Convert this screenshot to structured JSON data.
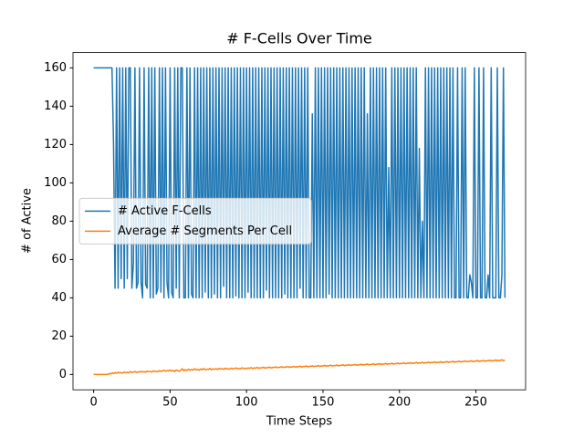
{
  "chart_data": {
    "type": "line",
    "title": "# F-Cells Over Time",
    "x_label": "Time Steps",
    "y_label": "# of Active",
    "xlim": [
      -13.5,
      282.5
    ],
    "ylim": [
      -8,
      168
    ],
    "xticks": [
      0,
      50,
      100,
      150,
      200,
      250
    ],
    "yticks": [
      0,
      20,
      40,
      60,
      80,
      100,
      120,
      140,
      160
    ],
    "legend": "center left",
    "x": [
      0,
      1,
      2,
      3,
      4,
      5,
      6,
      7,
      8,
      9,
      10,
      11,
      12,
      13,
      14,
      15,
      16,
      17,
      18,
      19,
      20,
      21,
      22,
      23,
      24,
      25,
      26,
      27,
      28,
      29,
      30,
      31,
      32,
      33,
      34,
      35,
      36,
      37,
      38,
      39,
      40,
      41,
      42,
      43,
      44,
      45,
      46,
      47,
      48,
      49,
      50,
      51,
      52,
      53,
      54,
      55,
      56,
      57,
      58,
      59,
      60,
      61,
      62,
      63,
      64,
      65,
      66,
      67,
      68,
      69,
      70,
      71,
      72,
      73,
      74,
      75,
      76,
      77,
      78,
      79,
      80,
      81,
      82,
      83,
      84,
      85,
      86,
      87,
      88,
      89,
      90,
      91,
      92,
      93,
      94,
      95,
      96,
      97,
      98,
      99,
      100,
      101,
      102,
      103,
      104,
      105,
      106,
      107,
      108,
      109,
      110,
      111,
      112,
      113,
      114,
      115,
      116,
      117,
      118,
      119,
      120,
      121,
      122,
      123,
      124,
      125,
      126,
      127,
      128,
      129,
      130,
      131,
      132,
      133,
      134,
      135,
      136,
      137,
      138,
      139,
      140,
      141,
      142,
      143,
      144,
      145,
      146,
      147,
      148,
      149,
      150,
      151,
      152,
      153,
      154,
      155,
      156,
      157,
      158,
      159,
      160,
      161,
      162,
      163,
      164,
      165,
      166,
      167,
      168,
      169,
      170,
      171,
      172,
      173,
      174,
      175,
      176,
      177,
      178,
      179,
      180,
      181,
      182,
      183,
      184,
      185,
      186,
      187,
      188,
      189,
      190,
      191,
      192,
      193,
      194,
      195,
      196,
      197,
      198,
      199,
      200,
      201,
      202,
      203,
      204,
      205,
      206,
      207,
      208,
      209,
      210,
      211,
      212,
      213,
      214,
      215,
      216,
      217,
      218,
      219,
      220,
      221,
      222,
      223,
      224,
      225,
      226,
      227,
      228,
      229,
      230,
      231,
      232,
      233,
      234,
      235,
      236,
      237,
      238,
      239,
      240,
      241,
      242,
      243,
      244,
      245,
      246,
      247,
      248,
      249,
      250,
      251,
      252,
      253,
      254,
      255,
      256,
      257,
      258,
      259,
      260,
      261,
      262,
      263,
      264,
      265,
      266,
      267,
      268,
      269
    ],
    "series": [
      {
        "name": "# Active F-Cells",
        "color": "#1f77b4",
        "values": [
          160,
          160,
          160,
          160,
          160,
          160,
          160,
          160,
          160,
          160,
          160,
          160,
          160,
          121,
          45,
          160,
          45,
          160,
          50,
          160,
          45,
          160,
          50,
          160,
          160,
          45,
          58,
          160,
          45,
          48,
          160,
          48,
          40,
          160,
          47,
          45,
          160,
          40,
          160,
          40,
          160,
          42,
          45,
          160,
          43,
          160,
          40,
          160,
          48,
          40,
          160,
          43,
          40,
          160,
          45,
          160,
          40,
          160,
          160,
          40,
          40,
          160,
          40,
          160,
          42,
          40,
          160,
          40,
          160,
          40,
          160,
          40,
          160,
          43,
          160,
          40,
          160,
          40,
          160,
          42,
          160,
          40,
          160,
          40,
          160,
          46,
          160,
          40,
          160,
          40,
          160,
          40,
          160,
          41,
          160,
          40,
          160,
          40,
          160,
          40,
          160,
          43,
          160,
          40,
          160,
          40,
          160,
          40,
          160,
          40,
          160,
          40,
          160,
          44,
          160,
          40,
          160,
          40,
          160,
          40,
          160,
          40,
          160,
          40,
          160,
          42,
          160,
          40,
          160,
          40,
          160,
          40,
          160,
          40,
          160,
          45,
          160,
          40,
          160,
          40,
          160,
          40,
          40,
          136,
          40,
          160,
          40,
          160,
          40,
          160,
          40,
          160,
          40,
          160,
          42,
          160,
          40,
          160,
          40,
          160,
          40,
          160,
          40,
          160,
          40,
          160,
          40,
          160,
          40,
          160,
          40,
          160,
          40,
          160,
          40,
          160,
          40,
          160,
          40,
          136,
          40,
          160,
          40,
          160,
          40,
          160,
          40,
          160,
          40,
          160,
          40,
          160,
          40,
          108,
          40,
          160,
          40,
          160,
          40,
          160,
          40,
          160,
          40,
          160,
          40,
          160,
          40,
          160,
          40,
          160,
          40,
          160,
          40,
          118,
          40,
          80,
          40,
          160,
          40,
          160,
          40,
          160,
          40,
          160,
          40,
          160,
          40,
          160,
          40,
          160,
          40,
          160,
          40,
          160,
          40,
          160,
          40,
          40,
          160,
          40,
          40,
          160,
          40,
          160,
          40,
          40,
          52,
          48,
          40,
          160,
          40,
          40,
          160,
          40,
          40,
          160,
          40,
          40,
          52,
          40,
          160,
          40,
          40,
          40,
          160,
          40,
          40,
          52,
          160,
          40
        ]
      },
      {
        "name": "Average # Segments Per Cell",
        "color": "#ff7f0e",
        "values": [
          0,
          0,
          0,
          0,
          0,
          0,
          0,
          0,
          0,
          0,
          0.5,
          0.3,
          0.8,
          0.5,
          1,
          0.6,
          1.2,
          0.8,
          1,
          0.7,
          1.3,
          0.9,
          1.1,
          0.8,
          1.5,
          1.1,
          1.2,
          1.6,
          1,
          1.4,
          1.2,
          1.7,
          1.3,
          1.5,
          1.1,
          1.8,
          1.4,
          1.6,
          1.3,
          1.9,
          1.5,
          1.7,
          1.4,
          2,
          1.6,
          1.8,
          2.2,
          1.7,
          2,
          1.9,
          2.3,
          1.8,
          2.1,
          1.5,
          2.4,
          2,
          1.6,
          2.3,
          3,
          1.9,
          2.5,
          2.1,
          2.8,
          2.2,
          2.6,
          2.3,
          3,
          2.4,
          2.7,
          2.2,
          2.9,
          2.5,
          3.1,
          2.4,
          2.8,
          2.6,
          3.2,
          2.5,
          2.9,
          2.7,
          3,
          2.6,
          3.2,
          2.8,
          3.1,
          2.7,
          3.3,
          2.9,
          3,
          2.8,
          3.3,
          2.9,
          3.1,
          3.4,
          3,
          3.2,
          2.9,
          3.5,
          3.1,
          3.3,
          3,
          3.4,
          3.2,
          3.6,
          3.1,
          3.4,
          3.3,
          3.7,
          3.2,
          3.5,
          3.4,
          3.8,
          3.3,
          3.6,
          3.5,
          3.9,
          3.4,
          3.7,
          3.6,
          4,
          3.5,
          3.8,
          3.7,
          4.1,
          3.6,
          3.9,
          3.8,
          4.2,
          3.7,
          4,
          3.9,
          4.3,
          3.8,
          4.1,
          4,
          4.4,
          3.9,
          4.2,
          4.1,
          4.5,
          4,
          4.3,
          4.2,
          4.6,
          4.1,
          4.4,
          4.3,
          4.7,
          4.2,
          4.5,
          4.4,
          4.8,
          4.3,
          4.6,
          4.5,
          4.9,
          4.4,
          4.7,
          4.6,
          5,
          4.5,
          4.8,
          4.7,
          5.1,
          4.6,
          4.9,
          4.8,
          5.2,
          4.7,
          5,
          4.9,
          5.3,
          4.8,
          5.1,
          5,
          5.4,
          4.9,
          5.2,
          5.1,
          5.5,
          5,
          5.3,
          5.2,
          5.6,
          5.1,
          5.4,
          5.3,
          5.7,
          5.2,
          5.5,
          5.4,
          5.8,
          5.3,
          5.6,
          5.5,
          5.9,
          5.4,
          5.7,
          5.6,
          6,
          5.5,
          5.8,
          5.7,
          6.1,
          5.6,
          5.9,
          5.8,
          6.2,
          5.7,
          6,
          5.9,
          6.3,
          5.8,
          6.1,
          6,
          6.4,
          5.9,
          6.2,
          6.1,
          6.5,
          6,
          6.3,
          6.2,
          6.6,
          6.1,
          6.4,
          6.3,
          6.7,
          6.2,
          6.5,
          6.4,
          6.8,
          6.3,
          6.6,
          6.5,
          6.9,
          6.4,
          6.7,
          6.6,
          7,
          6.5,
          6.8,
          6.7,
          7.1,
          6.6,
          6.9,
          6.8,
          7.2,
          6.7,
          7,
          6.9,
          7.3,
          6.8,
          7.1,
          7,
          7.4,
          6.9,
          7.2,
          7.1,
          7.5,
          7,
          7.3,
          7.2,
          7.6,
          7.1,
          7.4,
          7.3,
          7.7,
          7.2,
          7.5
        ]
      }
    ]
  }
}
